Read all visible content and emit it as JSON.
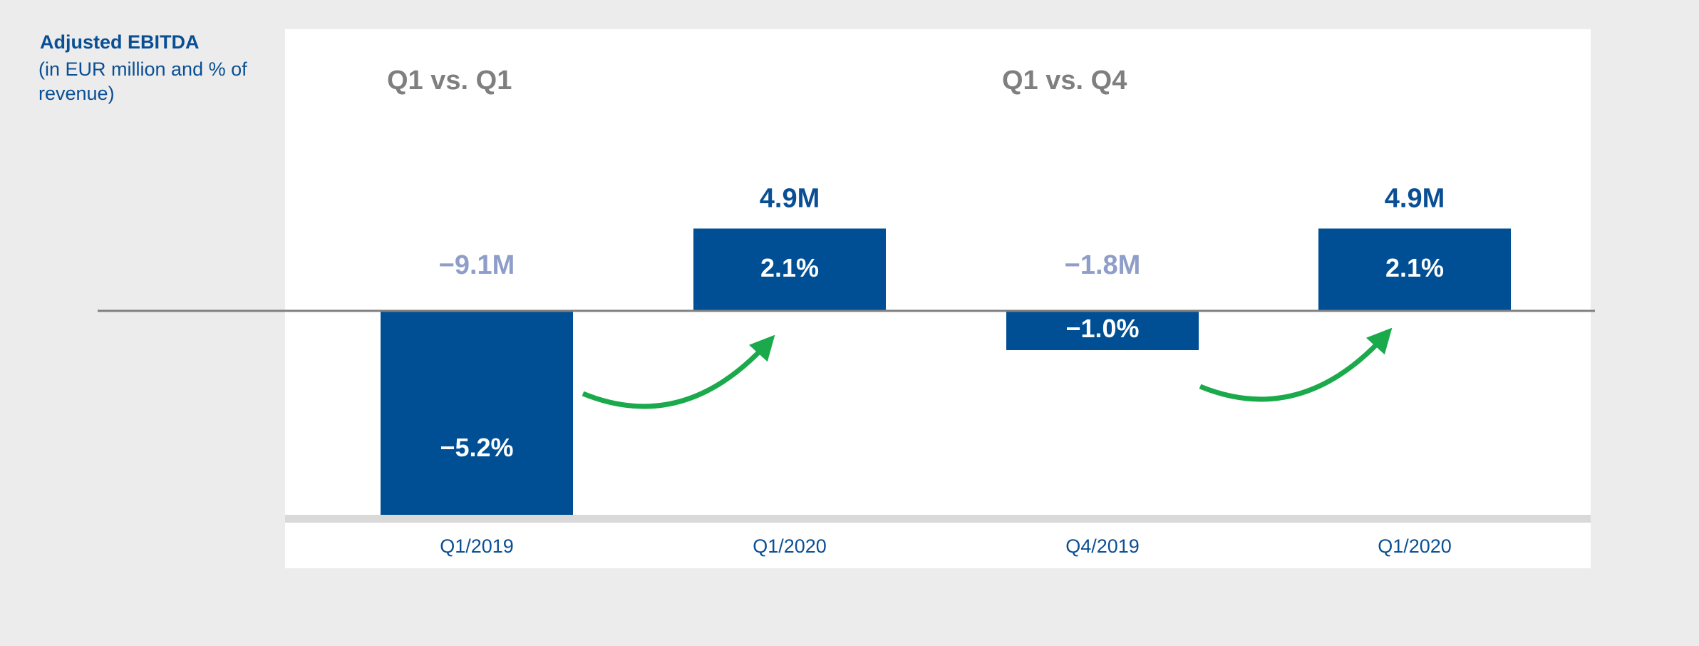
{
  "chart_data": {
    "type": "bar",
    "title": "Adjusted EBITDA",
    "subtitle": "(in EUR million and % of revenue)",
    "group_titles": [
      "Q1 vs. Q1",
      "Q1 vs. Q4"
    ],
    "categories": [
      "Q1/2019",
      "Q1/2020",
      "Q4/2019",
      "Q1/2020"
    ],
    "values": [
      -5.2,
      2.1,
      -1.0,
      2.1
    ],
    "value_labels": [
      "−5.2%",
      "2.1%",
      "−1.0%",
      "2.1%"
    ],
    "eur_values": [
      -9.1,
      4.9,
      -1.8,
      4.9
    ],
    "eur_labels": [
      "−9.1M",
      "4.9M",
      "−1.8M",
      "4.9M"
    ],
    "color": "#004f94",
    "ylim": [
      -5.2,
      2.5
    ]
  }
}
